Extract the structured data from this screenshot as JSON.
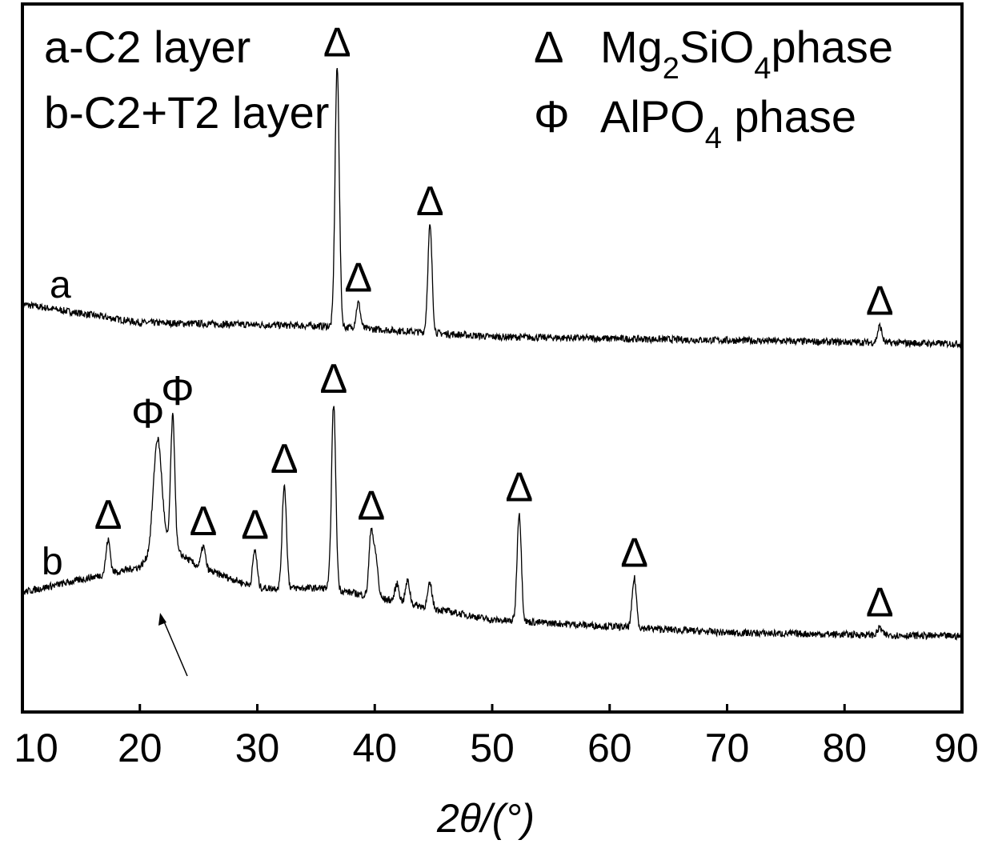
{
  "chart_data": {
    "type": "line",
    "title": "",
    "xlabel": "2θ/(°)",
    "ylabel": "",
    "xlim": [
      10,
      90
    ],
    "ylim": [
      0,
      1000
    ],
    "x_ticks": [
      10,
      20,
      30,
      40,
      50,
      60,
      70,
      80,
      90
    ],
    "grid": false,
    "legend_position": "top",
    "legend_left": [
      "a-C2 layer",
      "b-C2+T2 layer"
    ],
    "legend_right": [
      {
        "symbol": "Δ",
        "parts": [
          "Mg",
          "2",
          "SiO",
          "4",
          "phase"
        ]
      },
      {
        "symbol": "Φ",
        "parts": [
          "AlPO",
          "4",
          " phase"
        ]
      }
    ],
    "series": [
      {
        "name": "a",
        "baseline": [
          [
            10,
            576
          ],
          [
            20,
            550
          ],
          [
            36,
            545
          ],
          [
            50,
            530
          ],
          [
            90,
            520
          ]
        ],
        "peaks": [
          {
            "x": 36.8,
            "y": 910,
            "phase": "Δ"
          },
          {
            "x": 38.6,
            "y": 578,
            "phase": "Δ"
          },
          {
            "x": 44.7,
            "y": 686,
            "phase": "Δ"
          },
          {
            "x": 83.0,
            "y": 545,
            "phase": "Δ"
          }
        ]
      },
      {
        "name": "b",
        "baseline": [
          [
            10,
            169
          ],
          [
            20,
            205
          ],
          [
            22,
            240
          ],
          [
            25,
            205
          ],
          [
            30,
            175
          ],
          [
            36,
            175
          ],
          [
            50,
            130
          ],
          [
            70,
            112
          ],
          [
            90,
            107
          ]
        ],
        "peaks": [
          {
            "x": 17.3,
            "y": 243,
            "phase": "Δ"
          },
          {
            "x": 21.5,
            "y": 386,
            "phase": "Φ"
          },
          {
            "x": 22.8,
            "y": 418,
            "phase": "Φ"
          },
          {
            "x": 25.4,
            "y": 234,
            "phase": "Δ"
          },
          {
            "x": 29.8,
            "y": 229,
            "phase": "Δ"
          },
          {
            "x": 32.3,
            "y": 322,
            "phase": "Δ"
          },
          {
            "x": 36.5,
            "y": 435,
            "phase": "Δ"
          },
          {
            "x": 39.7,
            "y": 256,
            "phase": "Δ"
          },
          {
            "x": 40.1,
            "y": 215,
            "phase": ""
          },
          {
            "x": 41.9,
            "y": 181,
            "phase": ""
          },
          {
            "x": 42.8,
            "y": 185,
            "phase": ""
          },
          {
            "x": 44.7,
            "y": 181,
            "phase": ""
          },
          {
            "x": 52.3,
            "y": 282,
            "phase": "Δ"
          },
          {
            "x": 62.1,
            "y": 189,
            "phase": "Δ"
          },
          {
            "x": 83.0,
            "y": 119,
            "phase": "Δ"
          }
        ]
      }
    ],
    "annotations": [
      "arrow pointing to broad hump near 22°"
    ]
  }
}
